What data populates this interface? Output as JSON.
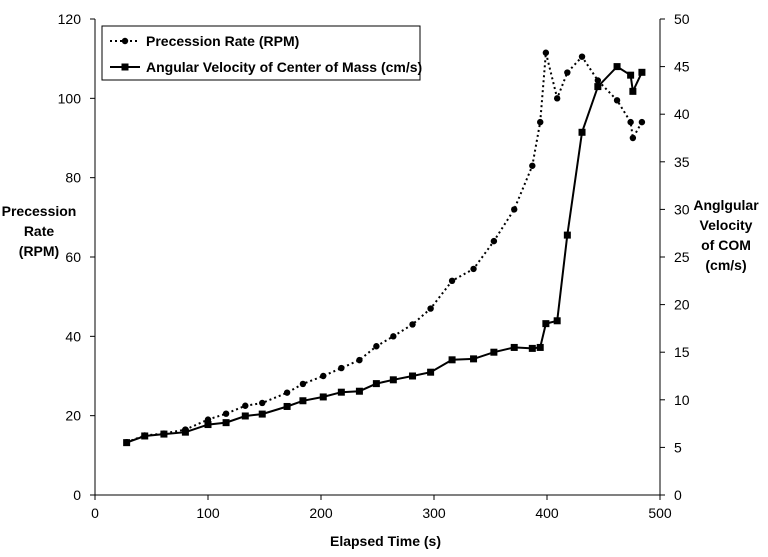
{
  "chart_data": {
    "type": "line",
    "xlabel": "Elapsed Time (s)",
    "ylabel_left": [
      "Precession",
      "Rate",
      "(RPM)"
    ],
    "ylabel_right": [
      "Anglgular",
      "Velocity",
      "of COM",
      "(cm/s)"
    ],
    "xlim": [
      0,
      500
    ],
    "ylim_left": [
      0,
      120
    ],
    "ylim_right": [
      0,
      50
    ],
    "x_ticks": [
      0,
      100,
      200,
      300,
      400,
      500
    ],
    "y_left_ticks": [
      0,
      20,
      40,
      60,
      80,
      100,
      120
    ],
    "y_right_ticks": [
      0,
      5,
      10,
      15,
      20,
      25,
      30,
      35,
      40,
      45,
      50
    ],
    "grid": false,
    "legend_position": "top-left",
    "series": [
      {
        "name": "Precession Rate (RPM)",
        "axis": "left",
        "style": "dotted",
        "marker": "circle",
        "x": [
          28,
          44,
          61,
          80,
          100,
          116,
          133,
          148,
          170,
          184,
          202,
          218,
          234,
          249,
          264,
          281,
          297,
          316,
          335,
          353,
          371,
          387,
          394,
          399,
          409,
          418,
          431,
          445,
          462,
          474,
          476,
          484
        ],
        "y": [
          13.3,
          15.0,
          15.5,
          16.5,
          19.0,
          20.5,
          22.5,
          23.2,
          25.8,
          28.0,
          30.0,
          32.0,
          34.0,
          37.5,
          40.0,
          43.0,
          47.0,
          54.0,
          57.0,
          64.0,
          72.0,
          83.0,
          94.0,
          111.5,
          100.0,
          106.5,
          110.5,
          104.5,
          99.5,
          94.0,
          90.0,
          94.0
        ]
      },
      {
        "name": "Angular Velocity of Center of Mass (cm/s)",
        "axis": "right",
        "style": "solid",
        "marker": "square",
        "x": [
          28,
          44,
          61,
          80,
          100,
          116,
          133,
          148,
          170,
          184,
          202,
          218,
          234,
          249,
          264,
          281,
          297,
          316,
          335,
          353,
          371,
          387,
          394,
          399,
          409,
          418,
          431,
          445,
          462,
          474,
          476,
          484
        ],
        "y": [
          5.5,
          6.2,
          6.4,
          6.6,
          7.4,
          7.6,
          8.3,
          8.5,
          9.3,
          9.9,
          10.3,
          10.8,
          10.9,
          11.7,
          12.1,
          12.5,
          12.9,
          14.2,
          14.3,
          15.0,
          15.5,
          15.4,
          15.5,
          18.0,
          18.3,
          27.3,
          38.1,
          42.9,
          45.0,
          44.1,
          42.4,
          44.4
        ]
      }
    ]
  }
}
